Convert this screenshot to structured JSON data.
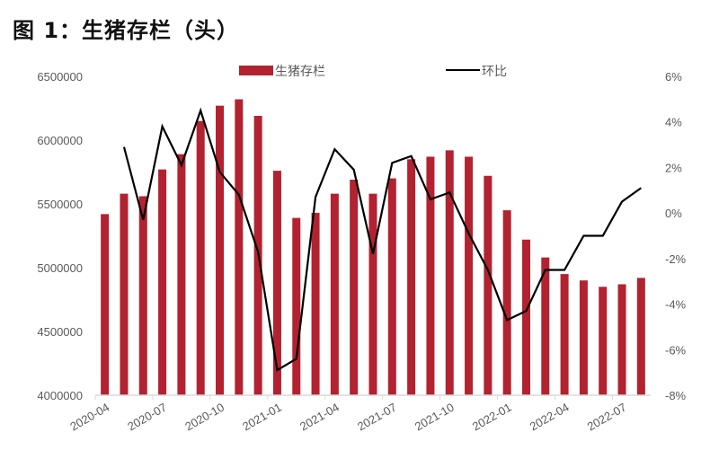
{
  "title": "图 1：生猪存栏（头）",
  "colors": {
    "bar": "#B22230",
    "line": "#000000",
    "axis": "#D9D9D9",
    "tick_text": "#595959"
  },
  "legend": {
    "bar_label": "生猪存栏",
    "line_label": "环比"
  },
  "chart_data": {
    "type": "bar+line",
    "title": "图 1：生猪存栏（头）",
    "xlabel": "",
    "ylabel": "生猪存栏（头）",
    "y2label": "环比",
    "ylim": [
      4000000,
      6500000
    ],
    "y2lim": [
      -0.08,
      0.06
    ],
    "yticks": [
      "6500000",
      "6000000",
      "5500000",
      "5000000",
      "4500000",
      "4000000"
    ],
    "y2ticks": [
      "6%",
      "4%",
      "2%",
      "0%",
      "-2%",
      "-4%",
      "-6%",
      "-8%"
    ],
    "xtick_labels": [
      "2020-04",
      "2020-07",
      "2020-10",
      "2021-01",
      "2021-04",
      "2021-07",
      "2021-10",
      "2022-01",
      "2022-04",
      "2022-07"
    ],
    "legend_position": "top",
    "grid": false,
    "categories": [
      "2020-04",
      "2020-05",
      "2020-06",
      "2020-07",
      "2020-08",
      "2020-09",
      "2020-10",
      "2020-11",
      "2020-12",
      "2021-01",
      "2021-02",
      "2021-03",
      "2021-04",
      "2021-05",
      "2021-06",
      "2021-07",
      "2021-08",
      "2021-09",
      "2021-10",
      "2021-11",
      "2021-12",
      "2022-01",
      "2022-02",
      "2022-03",
      "2022-04",
      "2022-05",
      "2022-06",
      "2022-07",
      "2022-08"
    ],
    "series": [
      {
        "name": "生猪存栏",
        "type": "bar",
        "axis": "left",
        "values": [
          5420000,
          5580000,
          5560000,
          5770000,
          5890000,
          6150000,
          6270000,
          6320000,
          6190000,
          5760000,
          5390000,
          5430000,
          5580000,
          5690000,
          5580000,
          5700000,
          5850000,
          5870000,
          5920000,
          5870000,
          5720000,
          5450000,
          5220000,
          5080000,
          4950000,
          4900000,
          4850000,
          4870000,
          4920000
        ]
      },
      {
        "name": "环比",
        "type": "line",
        "axis": "right",
        "values": [
          null,
          0.029,
          -0.003,
          0.038,
          0.021,
          0.045,
          0.018,
          0.008,
          -0.017,
          -0.069,
          -0.064,
          0.007,
          0.028,
          0.019,
          -0.018,
          0.022,
          0.025,
          0.006,
          0.009,
          -0.009,
          -0.025,
          -0.047,
          -0.043,
          -0.025,
          -0.025,
          -0.01,
          -0.01,
          0.005,
          0.011
        ]
      }
    ]
  }
}
